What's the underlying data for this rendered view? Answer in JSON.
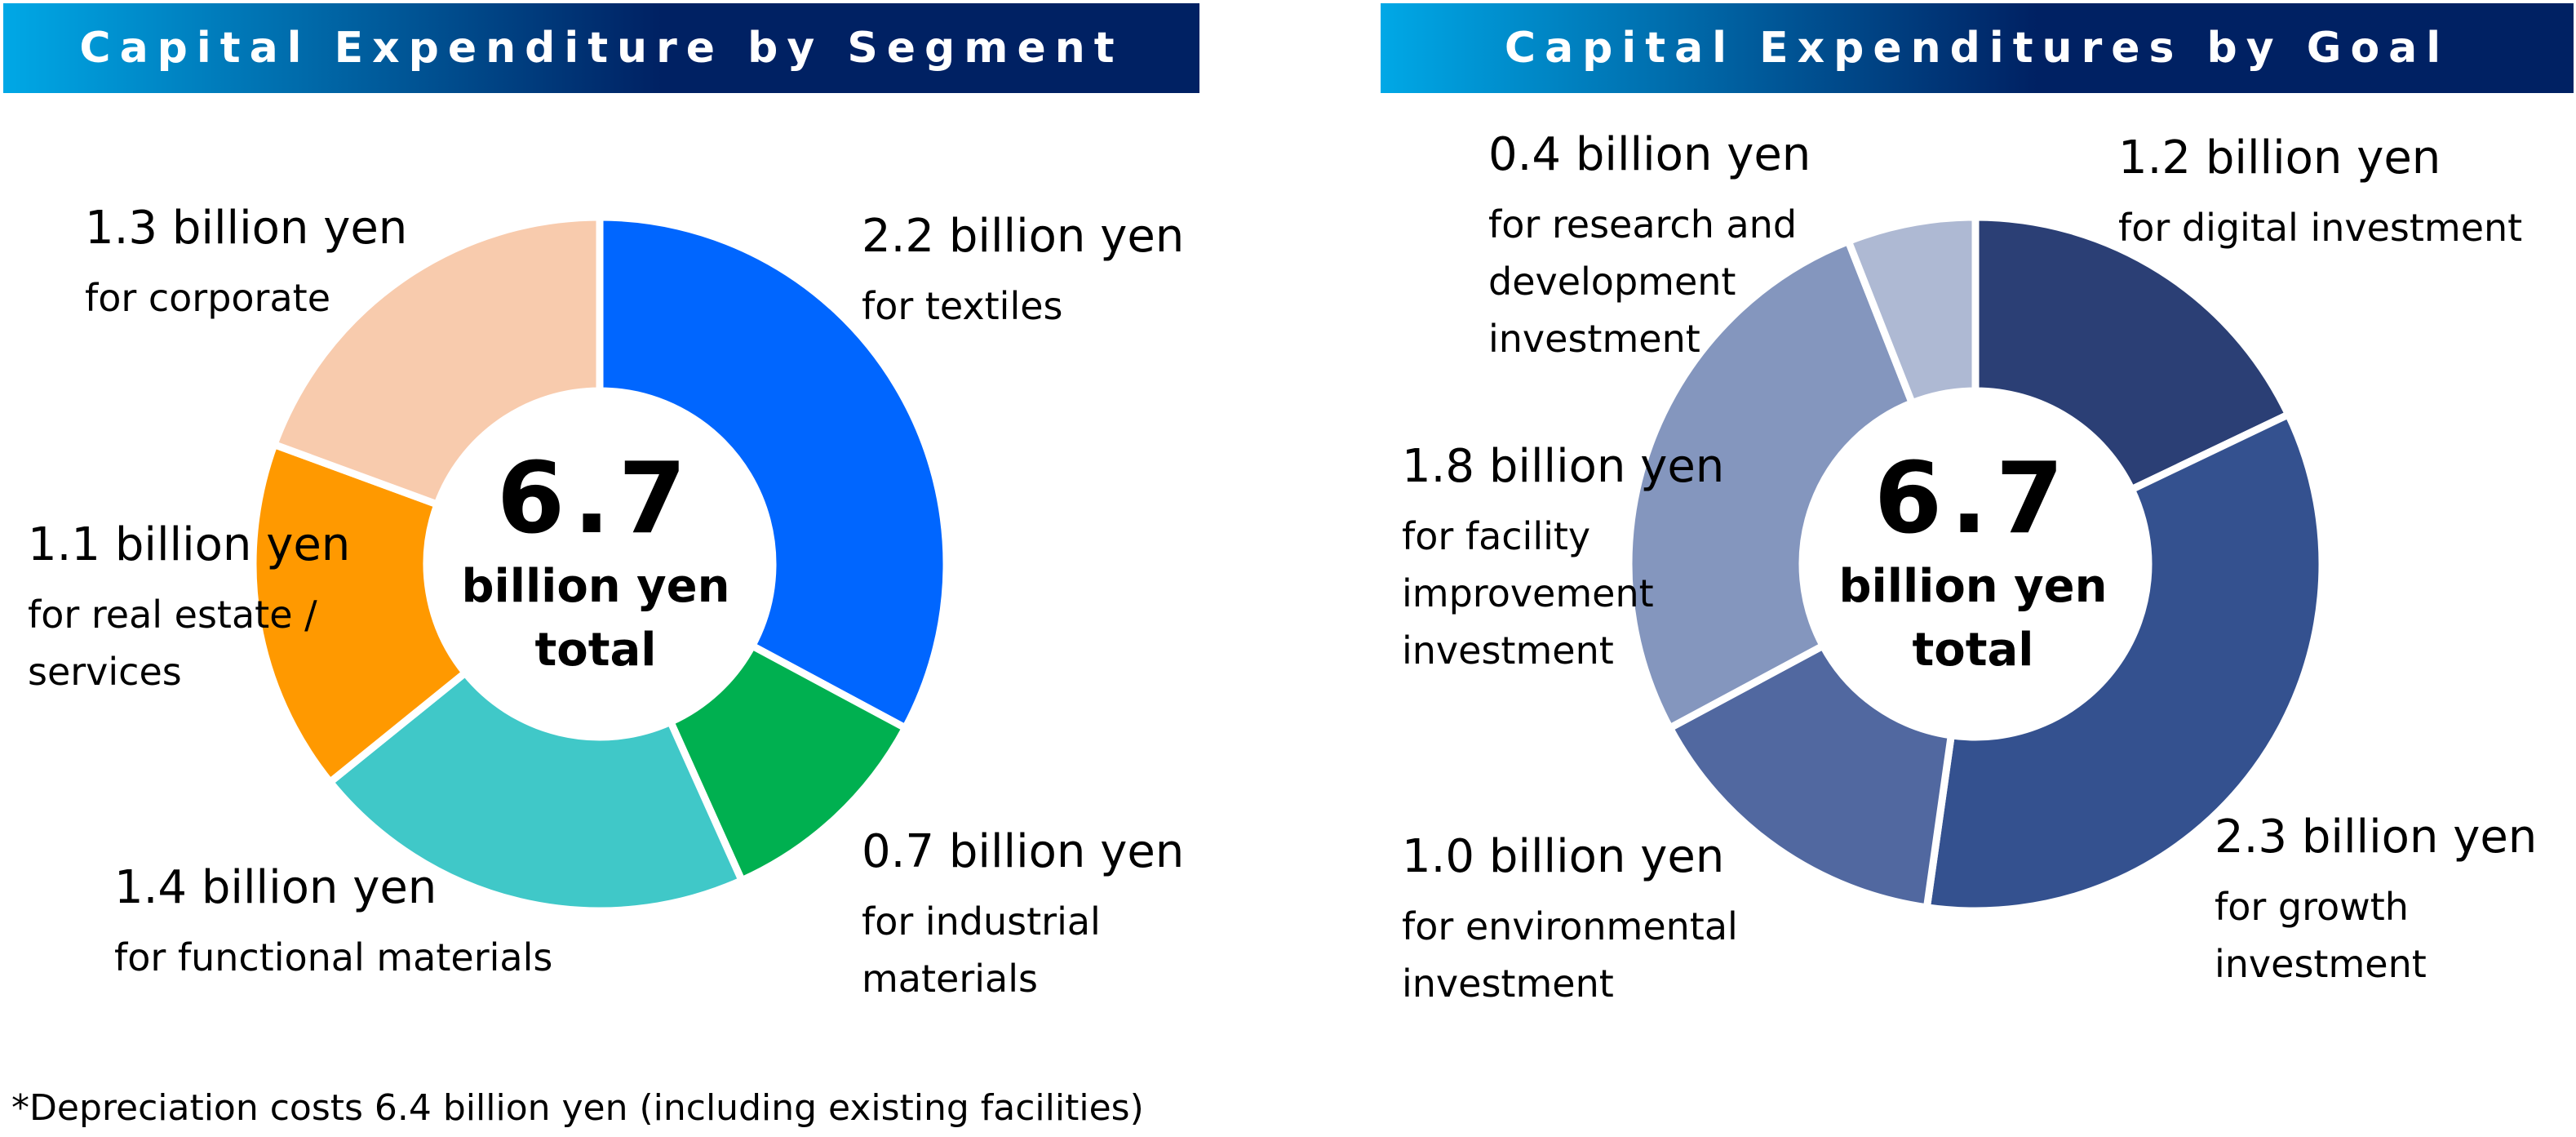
{
  "left_panel": {
    "title": "Capital Expenditure by Segment",
    "center_value": "6.7",
    "center_unit": "billion yen",
    "center_total": "total"
  },
  "right_panel": {
    "title": "Capital Expenditures by Goal",
    "center_value": "6.7",
    "center_unit": "billion yen",
    "center_total": "total"
  },
  "footnote": "*Depreciation costs 6.4 billion yen (including existing facilities)",
  "chart_data": [
    {
      "type": "pie",
      "style": "donut",
      "title": "Capital Expenditure by Segment",
      "unit": "billion yen",
      "total": 6.7,
      "slices": [
        {
          "label": "for textiles",
          "value": 2.2,
          "amount_text": "2.2 billion yen",
          "color": "#0066FF"
        },
        {
          "label": "for industrial materials",
          "value": 0.7,
          "amount_text": "0.7 billion yen",
          "color": "#00B050"
        },
        {
          "label": "for functional materials",
          "value": 1.4,
          "amount_text": "1.4 billion yen",
          "color": "#40C8C8"
        },
        {
          "label": "for real estate / services",
          "value": 1.1,
          "amount_text": "1.1 billion yen",
          "color": "#FF9900"
        },
        {
          "label": "for corporate",
          "value": 1.3,
          "amount_text": "1.3 billion yen",
          "color": "#F8CBAD"
        }
      ]
    },
    {
      "type": "pie",
      "style": "donut",
      "title": "Capital Expenditures by Goal",
      "unit": "billion yen",
      "total": 6.7,
      "slices": [
        {
          "label": "for digital investment",
          "value": 1.2,
          "amount_text": "1.2 billion yen",
          "color": "#2B3F75"
        },
        {
          "label": "for growth investment",
          "value": 2.3,
          "amount_text": "2.3 billion yen",
          "color": "#34518F"
        },
        {
          "label": "for environmental investment",
          "value": 1.0,
          "amount_text": "1.0 billion yen",
          "color": "#5168A0"
        },
        {
          "label": "for facility improvement investment",
          "value": 1.8,
          "amount_text": "1.8 billion yen",
          "color": "#8496BE"
        },
        {
          "label": "for research and development investment",
          "value": 0.4,
          "amount_text": "0.4 billion yen",
          "color": "#AEB9D3"
        }
      ]
    }
  ],
  "colors": {
    "header_gradient_start": "#00A8E6",
    "header_gradient_end": "#002163",
    "gap": "#FFFFFF"
  }
}
